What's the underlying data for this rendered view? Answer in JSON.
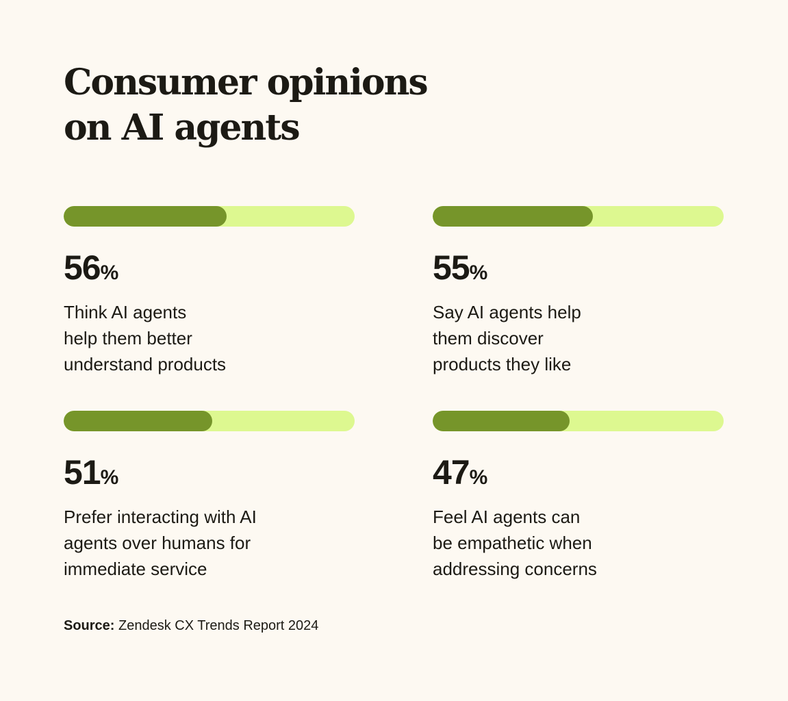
{
  "title_lines": [
    "Consumer opinions",
    "on AI agents"
  ],
  "colors": {
    "background": "#fdf9f2",
    "fill": "#76952a",
    "track": "#ddf890",
    "text": "#1c1a14"
  },
  "chart_data": {
    "type": "bar",
    "orientation": "horizontal progress bars",
    "title": "Consumer opinions on AI agents",
    "unit": "%",
    "ylim": [
      0,
      100
    ],
    "items": [
      {
        "value": 56,
        "value_label": "56",
        "unit": "%",
        "description": [
          "Think AI agents",
          "help them better",
          "understand products"
        ]
      },
      {
        "value": 55,
        "value_label": "55",
        "unit": "%",
        "description": [
          "Say AI agents help",
          "them discover",
          "products they like"
        ]
      },
      {
        "value": 51,
        "value_label": "51",
        "unit": "%",
        "description": [
          "Prefer interacting with AI",
          "agents over humans for",
          "immediate service"
        ]
      },
      {
        "value": 47,
        "value_label": "47",
        "unit": "%",
        "description": [
          "Feel AI agents can",
          "be empathetic when",
          "addressing concerns"
        ]
      }
    ]
  },
  "source": {
    "label": "Source:",
    "text": " Zendesk CX Trends Report 2024"
  }
}
